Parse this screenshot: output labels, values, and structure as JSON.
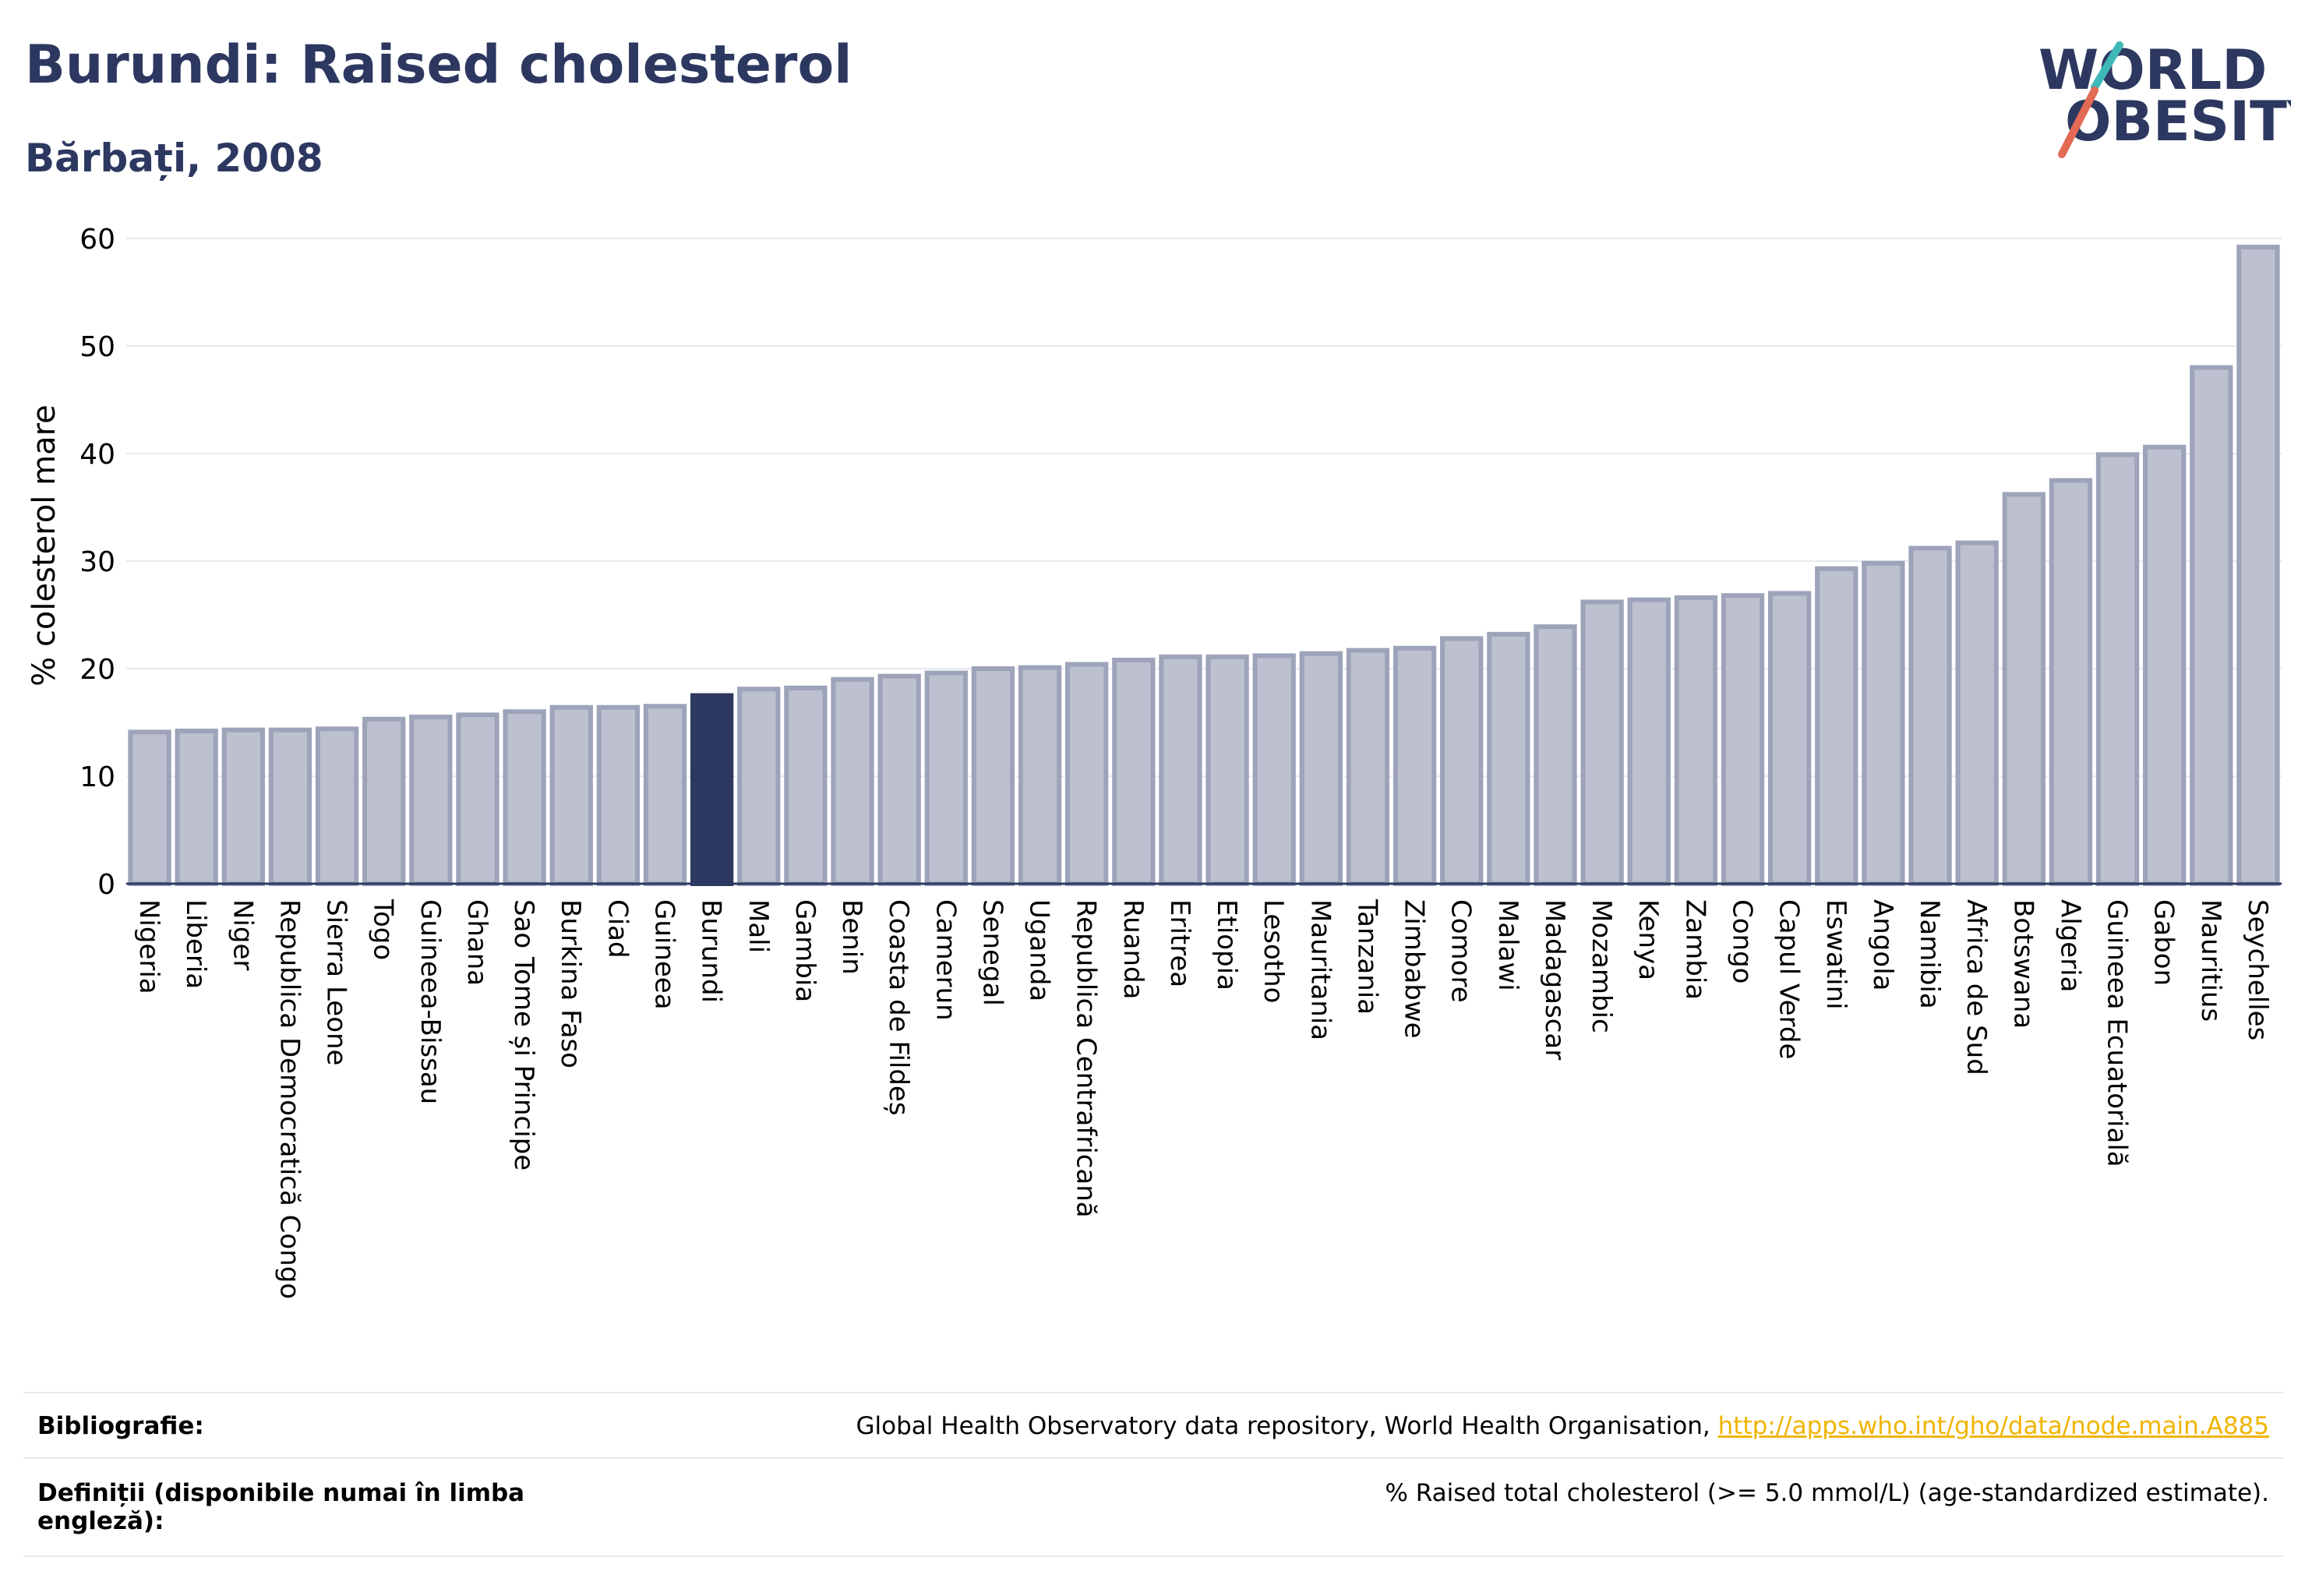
{
  "header": {
    "title": "Burundi: Raised cholesterol",
    "subtitle": "Bărbați, 2008"
  },
  "logo": {
    "line1": "WORLD",
    "line2": "OBESITY"
  },
  "chart_data": {
    "type": "bar",
    "ylabel": "% colesterol mare",
    "ylim": [
      0,
      60
    ],
    "yticks": [
      0,
      10,
      20,
      30,
      40,
      50,
      60
    ],
    "grid": true,
    "highlight": "Burundi",
    "colors": {
      "bar": "#bcc0cf",
      "bar_edge": "#9da3b9",
      "highlight": "#2d3861"
    },
    "categories": [
      "Nigeria",
      "Liberia",
      "Niger",
      "Republica Democratică Congo",
      "Sierra Leone",
      "Togo",
      "Guineea-Bissau",
      "Ghana",
      "Sao Tome și Principe",
      "Burkina Faso",
      "Ciad",
      "Guineea",
      "Burundi",
      "Mali",
      "Gambia",
      "Benin",
      "Coasta de Fildeș",
      "Camerun",
      "Senegal",
      "Uganda",
      "Republica Centrafricană",
      "Ruanda",
      "Eritrea",
      "Etiopia",
      "Lesotho",
      "Mauritania",
      "Tanzania",
      "Zimbabwe",
      "Comore",
      "Malawi",
      "Madagascar",
      "Mozambic",
      "Kenya",
      "Zambia",
      "Congo",
      "Capul Verde",
      "Eswatini",
      "Angola",
      "Namibia",
      "Africa de Sud",
      "Botswana",
      "Algeria",
      "Guineea Ecuatorială",
      "Gabon",
      "Mauritius",
      "Seychelles"
    ],
    "values": [
      14.1,
      14.2,
      14.3,
      14.3,
      14.4,
      15.3,
      15.5,
      15.7,
      16.0,
      16.4,
      16.4,
      16.5,
      17.5,
      18.1,
      18.2,
      19.0,
      19.3,
      19.6,
      20.0,
      20.1,
      20.4,
      20.8,
      21.1,
      21.1,
      21.2,
      21.4,
      21.7,
      21.9,
      22.8,
      23.2,
      23.9,
      26.2,
      26.4,
      26.6,
      26.8,
      27.0,
      29.3,
      29.8,
      31.2,
      31.7,
      36.2,
      37.5,
      39.9,
      40.6,
      48.0,
      59.2
    ]
  },
  "footer": {
    "bibliography_label": "Bibliografie:",
    "bibliography_text": "Global Health Observatory data repository, World Health Organisation,",
    "bibliography_link": "http://apps.who.int/gho/data/node.main.A885",
    "definitions_label": "Definiții (disponibile numai în limba engleză):",
    "definitions_text": "% Raised total cholesterol (>= 5.0 mmol/L) (age-standardized estimate)."
  }
}
